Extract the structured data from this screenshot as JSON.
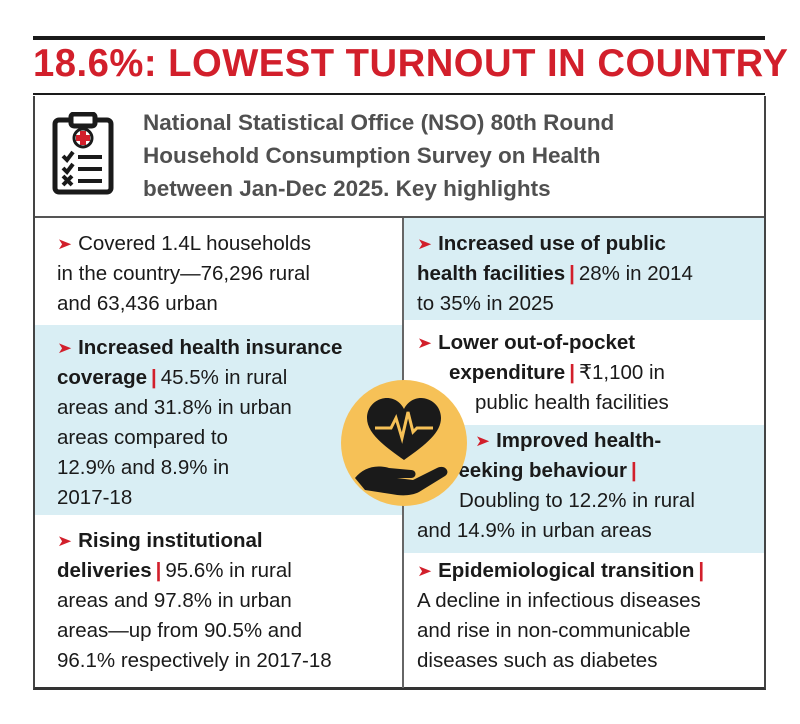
{
  "headline": "18.6%: LOWEST TURNOUT IN COUNTRY",
  "intro": {
    "icon": "clipboard-checklist-icon",
    "line1": "National Statistical Office (NSO) 80th Round",
    "line2": "Household Consumption Survey on Health",
    "line3": "between Jan-Dec 2025. Key highlights"
  },
  "center_icon": "heart-in-hand-icon",
  "colors": {
    "accent": "#d21f2b",
    "highlight": "#d9eef4",
    "icon_bg": "#f6c157"
  },
  "left": [
    {
      "bold": "",
      "lines": [
        "Covered 1.4L households",
        "in the country—76,296 rural",
        "and 63,436 urban"
      ]
    },
    {
      "bold_lines": [
        "Increased health insurance",
        "coverage"
      ],
      "lines": [
        "45.5% in rural",
        "areas and 31.8% in urban",
        "areas compared to",
        "12.9% and 8.9% in",
        "2017-18"
      ]
    },
    {
      "bold_lines": [
        "Rising institutional",
        "deliveries"
      ],
      "lines": [
        "95.6% in rural",
        "areas and 97.8% in urban",
        "areas—up from 90.5% and",
        "96.1% respectively in 2017-18"
      ]
    }
  ],
  "right": [
    {
      "bold_lines": [
        "Increased use of public",
        "health facilities"
      ],
      "lines": [
        "28% in 2014",
        "to 35% in 2025"
      ]
    },
    {
      "bold_lines": [
        "Lower out-of-pocket",
        "expenditure"
      ],
      "lines": [
        "₹1,100 in",
        "public health facilities"
      ]
    },
    {
      "bold_lines": [
        "Improved health-",
        "seeking behaviour"
      ],
      "lines": [
        "Doubling to 12.2% in rural",
        "and 14.9% in urban areas"
      ]
    },
    {
      "bold_lines": [
        "Epidemiological transition"
      ],
      "lines": [
        "A decline in infectious diseases",
        "and rise in non-communicable",
        "diseases such as diabetes"
      ]
    }
  ]
}
